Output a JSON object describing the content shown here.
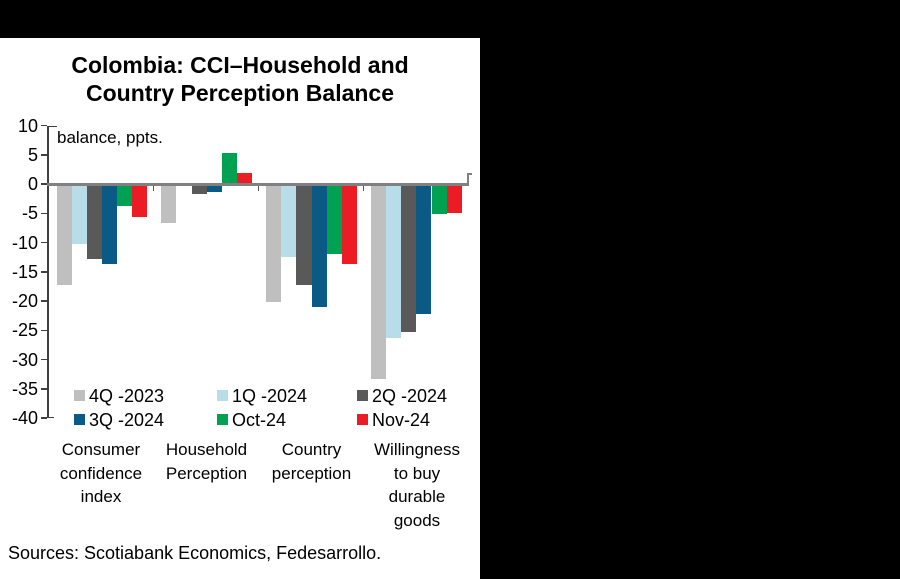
{
  "window": {
    "background_color": "#000000",
    "panel_background_color": "#ffffff"
  },
  "chart": {
    "title_line1": "Colombia: CCI–Household and",
    "title_line2": "Country Perception Balance",
    "unit_label": "balance, ppts."
  },
  "chart_data": {
    "type": "bar",
    "title": "Colombia: CCI–Household and Country Perception Balance",
    "unit_annotation": "balance, ppts.",
    "grid": false,
    "legend_position": "bottom-inside",
    "categories": [
      "Consumer confidence index",
      "Household Perception",
      "Country perception",
      "Willingness to buy durable goods"
    ],
    "category_label_lines": [
      [
        "Consumer",
        "confidence",
        "index"
      ],
      [
        "Household",
        "Perception"
      ],
      [
        "Country",
        "perception"
      ],
      [
        "Willingness",
        "to buy",
        "durable",
        "goods"
      ]
    ],
    "series": [
      {
        "name": "4Q -2023",
        "color": "#BFBFBF",
        "values": [
          -17.2,
          -6.6,
          -20.1,
          -33.3
        ]
      },
      {
        "name": "1Q -2024",
        "color": "#B7DEE8",
        "values": [
          -10.2,
          -0.3,
          -12.4,
          -26.3
        ]
      },
      {
        "name": "2Q -2024",
        "color": "#595959",
        "values": [
          -12.8,
          -1.7,
          -17.3,
          -25.3
        ]
      },
      {
        "name": "3Q -2024",
        "color": "#0B5A85",
        "values": [
          -13.6,
          -1.3,
          -21.0,
          -22.2
        ]
      },
      {
        "name": "Oct-24",
        "color": "#00A150",
        "values": [
          -3.8,
          5.3,
          -11.9,
          -5.2
        ]
      },
      {
        "name": "Nov-24",
        "color": "#EC1C24",
        "values": [
          -5.6,
          1.8,
          -13.7,
          -5.0
        ]
      }
    ],
    "y_axis": {
      "min": -40,
      "max": 10,
      "tick_step": 5,
      "tick_labels": [
        "10",
        "5",
        "0",
        "-5",
        "-10",
        "-15",
        "-20",
        "-25",
        "-30",
        "-35",
        "-40"
      ]
    },
    "axis_colors": {
      "zero_line": "#808080",
      "axis_line": "#404040",
      "boundary_tick": "#595959"
    }
  },
  "footer": {
    "sources": "Sources: Scotiabank Economics, Fedesarrollo."
  }
}
